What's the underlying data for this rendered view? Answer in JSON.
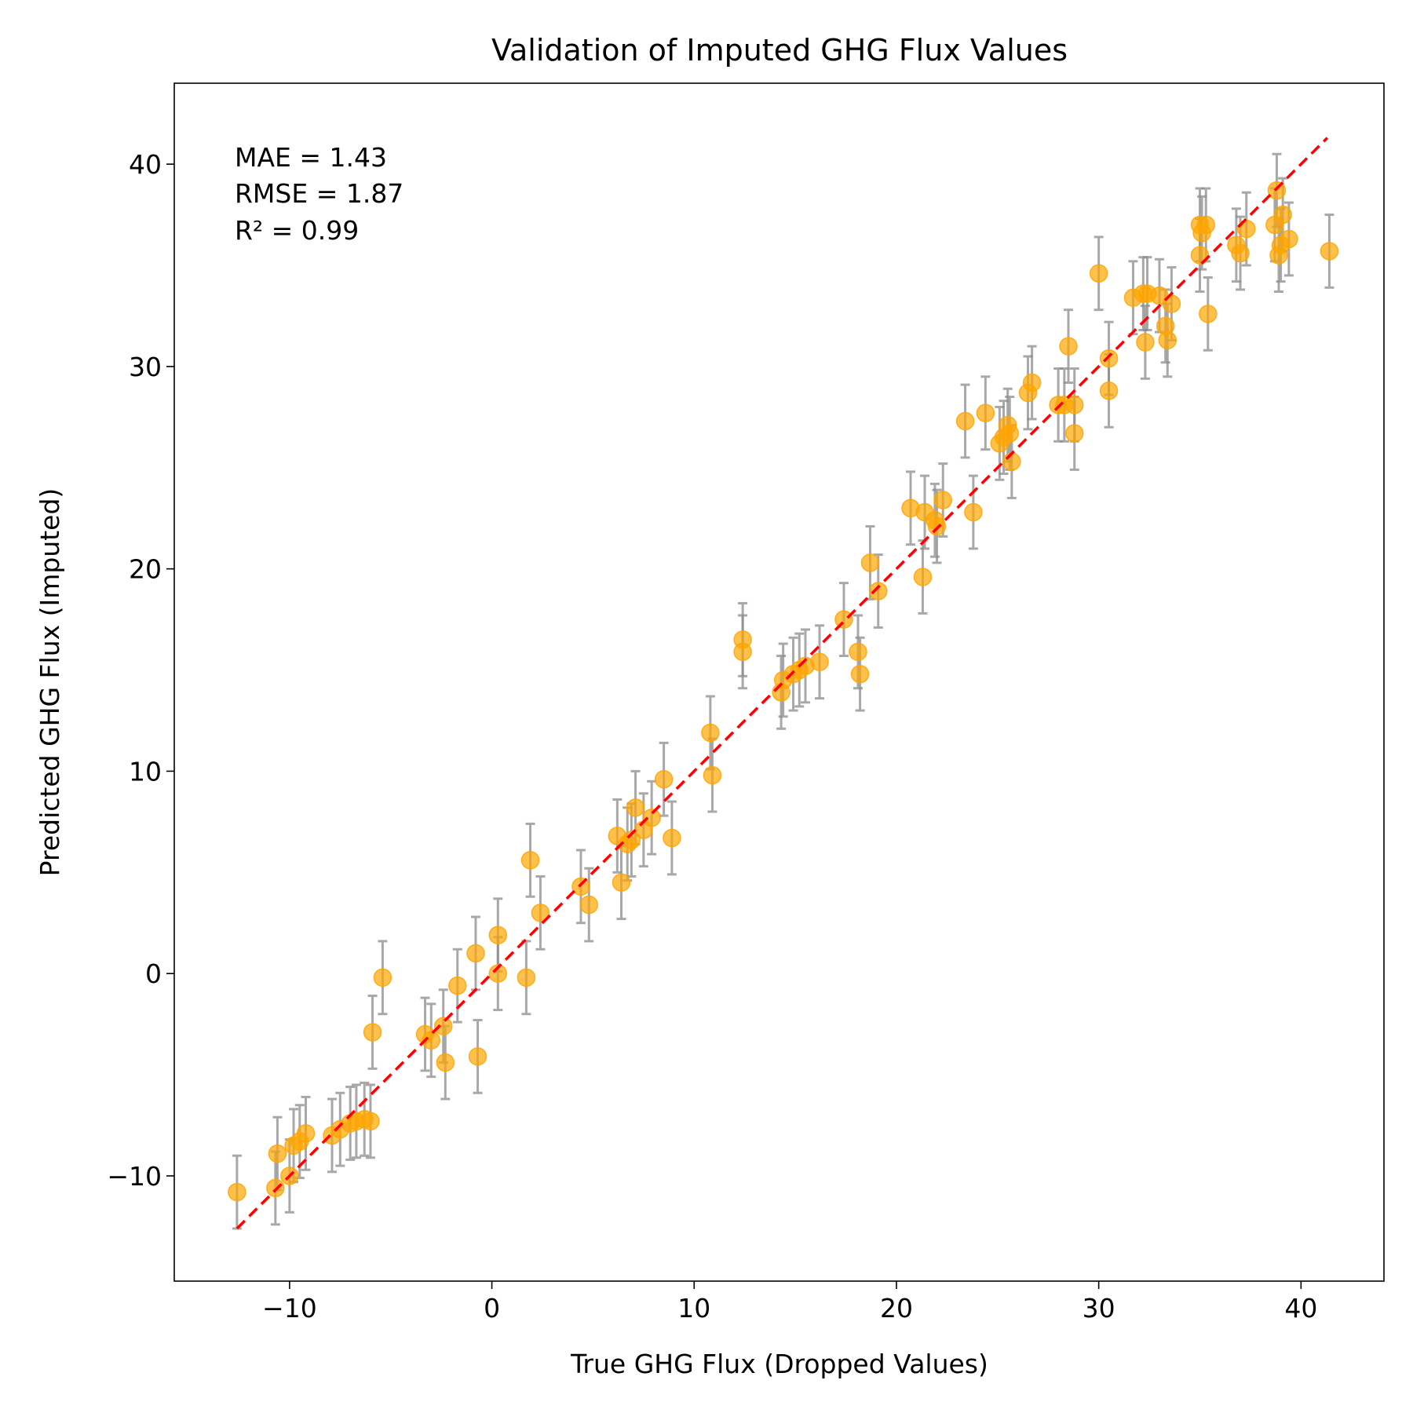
{
  "chart_data": {
    "type": "scatter",
    "title": "Validation of Imputed GHG Flux Values",
    "xlabel": "True GHG Flux (Dropped Values)",
    "ylabel": "Predicted GHG Flux (Imputed)",
    "xlim": [
      -15.7,
      44.1
    ],
    "ylim": [
      -15.2,
      44.0
    ],
    "xticks": [
      -10,
      0,
      10,
      20,
      30,
      40
    ],
    "yticks": [
      -10,
      0,
      10,
      20,
      30,
      40
    ],
    "xtick_labels": [
      "−10",
      "0",
      "10",
      "20",
      "30",
      "40"
    ],
    "ytick_labels": [
      "−10",
      "0",
      "10",
      "20",
      "30",
      "40"
    ],
    "grid": false,
    "annotation": [
      "MAE = 1.43",
      "RMSE = 1.87",
      "R² = 0.99"
    ],
    "error_bar_half_width": 1.8,
    "identity_line": {
      "from": -12.6,
      "to": 41.3,
      "color": "#ff0000",
      "style": "dashed"
    },
    "colors": {
      "points": "#ffa500",
      "error_bars": "#8c8c8c"
    },
    "points": [
      [
        -12.6,
        -10.8
      ],
      [
        -10.7,
        -10.6
      ],
      [
        -10.6,
        -8.9
      ],
      [
        -10.0,
        -10.0
      ],
      [
        -9.8,
        -8.5
      ],
      [
        -9.5,
        -8.3
      ],
      [
        -9.2,
        -7.9
      ],
      [
        -7.9,
        -8.0
      ],
      [
        -7.5,
        -7.7
      ],
      [
        -7.0,
        -7.4
      ],
      [
        -6.7,
        -7.3
      ],
      [
        -6.3,
        -7.2
      ],
      [
        -6.0,
        -7.3
      ],
      [
        -5.9,
        -2.9
      ],
      [
        -5.4,
        -0.2
      ],
      [
        -3.3,
        -3.0
      ],
      [
        -3.0,
        -3.3
      ],
      [
        -2.4,
        -2.6
      ],
      [
        -2.3,
        -4.4
      ],
      [
        -1.7,
        -0.6
      ],
      [
        -0.8,
        1.0
      ],
      [
        -0.7,
        -4.1
      ],
      [
        0.3,
        0.0
      ],
      [
        0.3,
        1.9
      ],
      [
        1.7,
        -0.2
      ],
      [
        1.9,
        5.6
      ],
      [
        2.4,
        3.0
      ],
      [
        4.4,
        4.3
      ],
      [
        4.8,
        3.4
      ],
      [
        6.2,
        6.8
      ],
      [
        6.4,
        4.5
      ],
      [
        6.7,
        6.4
      ],
      [
        6.9,
        6.6
      ],
      [
        7.1,
        8.2
      ],
      [
        7.5,
        7.1
      ],
      [
        7.9,
        7.7
      ],
      [
        8.5,
        9.6
      ],
      [
        8.9,
        6.7
      ],
      [
        10.8,
        11.9
      ],
      [
        10.9,
        9.8
      ],
      [
        12.4,
        16.5
      ],
      [
        12.4,
        15.9
      ],
      [
        14.3,
        13.9
      ],
      [
        14.4,
        14.5
      ],
      [
        14.9,
        14.8
      ],
      [
        15.2,
        15.0
      ],
      [
        15.5,
        15.2
      ],
      [
        16.2,
        15.4
      ],
      [
        17.4,
        17.5
      ],
      [
        18.1,
        15.9
      ],
      [
        18.2,
        14.8
      ],
      [
        18.7,
        20.3
      ],
      [
        19.1,
        18.9
      ],
      [
        20.7,
        23.0
      ],
      [
        21.3,
        19.6
      ],
      [
        21.4,
        22.8
      ],
      [
        21.9,
        22.4
      ],
      [
        22.0,
        22.1
      ],
      [
        22.3,
        23.4
      ],
      [
        23.8,
        22.8
      ],
      [
        23.4,
        27.3
      ],
      [
        24.4,
        27.7
      ],
      [
        25.1,
        26.2
      ],
      [
        25.3,
        26.5
      ],
      [
        25.5,
        27.1
      ],
      [
        25.6,
        26.7
      ],
      [
        25.7,
        25.3
      ],
      [
        26.5,
        28.7
      ],
      [
        26.7,
        29.2
      ],
      [
        28.0,
        28.1
      ],
      [
        28.3,
        28.1
      ],
      [
        28.5,
        31.0
      ],
      [
        28.8,
        28.1
      ],
      [
        28.8,
        26.7
      ],
      [
        30.0,
        34.6
      ],
      [
        30.5,
        30.4
      ],
      [
        30.5,
        28.8
      ],
      [
        31.7,
        33.4
      ],
      [
        32.2,
        33.6
      ],
      [
        32.3,
        31.2
      ],
      [
        32.4,
        33.6
      ],
      [
        33.0,
        33.5
      ],
      [
        33.3,
        32.0
      ],
      [
        33.4,
        31.3
      ],
      [
        33.6,
        33.1
      ],
      [
        35.0,
        35.5
      ],
      [
        35.0,
        37.0
      ],
      [
        35.1,
        36.6
      ],
      [
        35.3,
        37.0
      ],
      [
        35.4,
        32.6
      ],
      [
        36.8,
        36.0
      ],
      [
        37.0,
        35.6
      ],
      [
        37.3,
        36.8
      ],
      [
        38.7,
        37.0
      ],
      [
        38.8,
        38.7
      ],
      [
        38.9,
        35.5
      ],
      [
        39.0,
        36.0
      ],
      [
        39.1,
        37.5
      ],
      [
        39.4,
        36.3
      ],
      [
        41.4,
        35.7
      ]
    ]
  }
}
